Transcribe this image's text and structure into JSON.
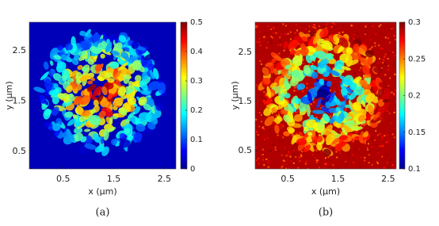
{
  "chart_data": [
    {
      "type": "heatmap",
      "xlabel": "x (μm)",
      "ylabel": "y (μm)",
      "caption": "(a)",
      "xlim": [
        -0.17,
        2.73
      ],
      "ylim": [
        0.15,
        3.07
      ],
      "xticks": [
        0.5,
        1.5,
        2.5
      ],
      "yticks": [
        0.5,
        1.5,
        2.5
      ],
      "clim": [
        0,
        0.5
      ],
      "cticks": [
        0,
        0.1,
        0.2,
        0.3,
        0.4,
        0.5
      ],
      "colormap": "jet"
    },
    {
      "type": "heatmap",
      "xlabel": "x (μm)",
      "ylabel": "y (μm)",
      "caption": "(b)",
      "xlim": [
        -0.15,
        2.66
      ],
      "ylim": [
        0.13,
        3.11
      ],
      "xticks": [
        0.5,
        1.5,
        2.5
      ],
      "yticks": [
        0.5,
        1.5,
        2.5
      ],
      "clim": [
        0.1,
        0.3
      ],
      "cticks": [
        0.1,
        0.15,
        0.2,
        0.25,
        0.3
      ],
      "colormap": "jet"
    }
  ]
}
